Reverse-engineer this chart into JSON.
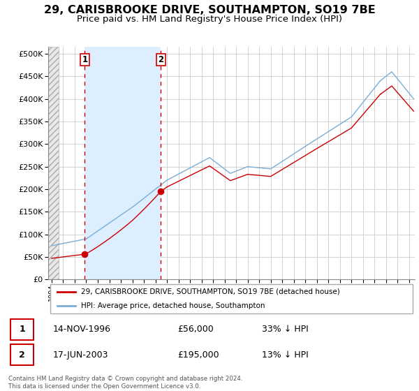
{
  "title": "29, CARISBROOKE DRIVE, SOUTHAMPTON, SO19 7BE",
  "subtitle": "Price paid vs. HM Land Registry's House Price Index (HPI)",
  "title_fontsize": 11.5,
  "subtitle_fontsize": 9.5,
  "ytick_values": [
    0,
    50000,
    100000,
    150000,
    200000,
    250000,
    300000,
    350000,
    400000,
    450000,
    500000
  ],
  "ylim": [
    0,
    515000
  ],
  "xlim_start": 1993.7,
  "xlim_end": 2025.5,
  "sale1_date": 1996.87,
  "sale1_price": 56000,
  "sale1_label": "1",
  "sale2_date": 2003.46,
  "sale2_price": 195000,
  "sale2_label": "2",
  "hatch_end": 1994.6,
  "red_line_color": "#cc0000",
  "blue_line_color": "#7aaed6",
  "blue_fill_color": "#ddeeff",
  "dot_color": "#cc0000",
  "vline_color": "#cc0000",
  "grid_color": "#cccccc",
  "background_color": "#ffffff",
  "legend_entry1": "29, CARISBROOKE DRIVE, SOUTHAMPTON, SO19 7BE (detached house)",
  "legend_entry2": "HPI: Average price, detached house, Southampton",
  "table_row1_date": "14-NOV-1996",
  "table_row1_price": "£56,000",
  "table_row1_hpi": "33% ↓ HPI",
  "table_row2_date": "17-JUN-2003",
  "table_row2_price": "£195,000",
  "table_row2_hpi": "13% ↓ HPI",
  "footer": "Contains HM Land Registry data © Crown copyright and database right 2024.\nThis data is licensed under the Open Government Licence v3.0."
}
